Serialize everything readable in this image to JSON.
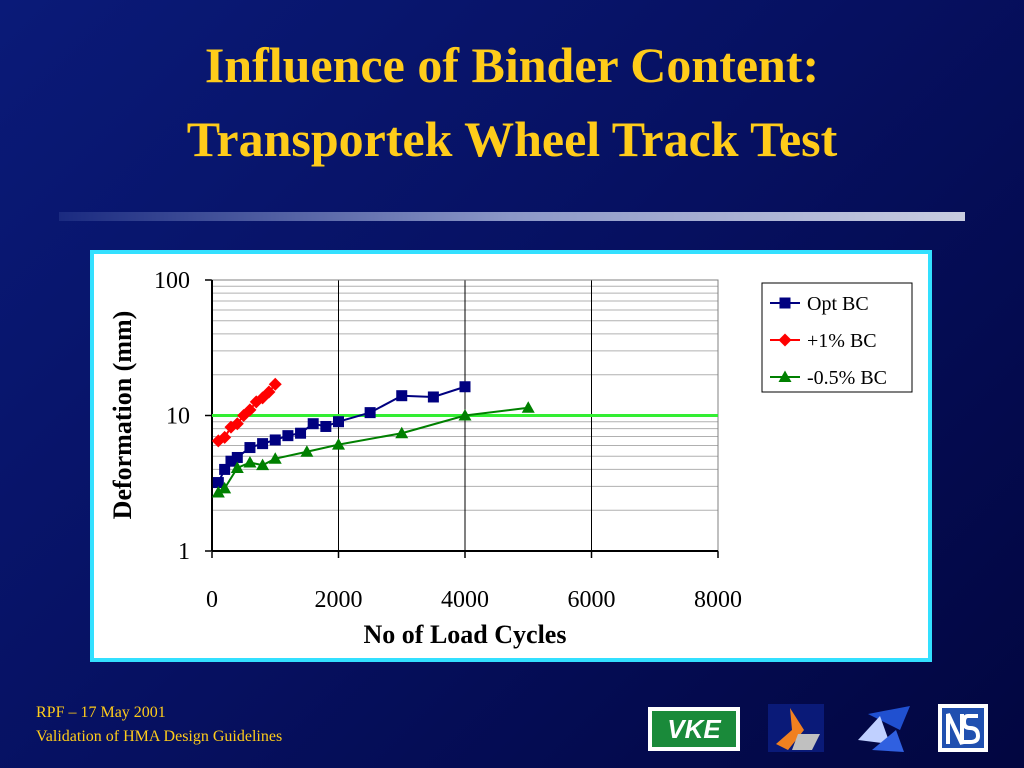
{
  "slide": {
    "title_lines": [
      "Influence of Binder Content:",
      "Transportek Wheel Track Test"
    ],
    "footer_lines": [
      "RPF – 17 May 2001",
      "Validation of HMA Design Guidelines"
    ],
    "logo_text": "VKE"
  },
  "chart_data": {
    "type": "line",
    "x_label": "No of Load Cycles",
    "y_label": "Deformation (mm)",
    "xlim": [
      0,
      8000
    ],
    "xticks": [
      0,
      2000,
      4000,
      6000,
      8000
    ],
    "ylim": [
      1,
      100
    ],
    "yticks": [
      1,
      10,
      100
    ],
    "yscale": "log",
    "grid": true,
    "minor_grid": true,
    "legend_position": "upper right",
    "reference_line": {
      "value": 10,
      "color": "#33ee33"
    },
    "series": [
      {
        "name": "Opt BC",
        "color": "#000080",
        "marker": "square",
        "x": [
          100,
          200,
          300,
          400,
          600,
          800,
          1000,
          1200,
          1400,
          1600,
          1800,
          2000,
          2500,
          3000,
          3500,
          4000
        ],
        "values": [
          3.2,
          4.0,
          4.6,
          4.9,
          5.8,
          6.2,
          6.6,
          7.1,
          7.4,
          8.7,
          8.3,
          9.0,
          10.5,
          14,
          13.7,
          16.3
        ]
      },
      {
        "name": "+1% BC",
        "color": "#ff0000",
        "marker": "diamond",
        "x": [
          100,
          200,
          300,
          400,
          500,
          600,
          700,
          800,
          900,
          1000
        ],
        "values": [
          6.5,
          6.9,
          8.2,
          8.7,
          10,
          11,
          12.6,
          13.5,
          14.9,
          17
        ]
      },
      {
        "name": "-0.5% BC",
        "color": "#008000",
        "marker": "triangle",
        "x": [
          100,
          200,
          400,
          600,
          800,
          1000,
          1500,
          2000,
          3000,
          4000,
          5000
        ],
        "values": [
          2.7,
          2.9,
          4.1,
          4.5,
          4.3,
          4.8,
          5.4,
          6.1,
          7.4,
          10,
          11.4
        ]
      }
    ]
  }
}
